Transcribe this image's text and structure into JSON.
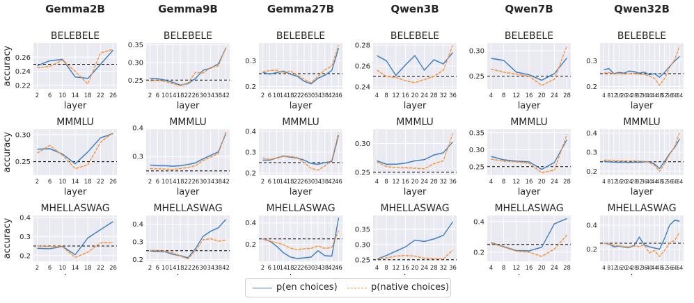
{
  "colors": {
    "en": "#3f7fbf",
    "native": "#f5943a",
    "panel_bg": "#eaeaf2",
    "grid": "#ffffff",
    "chance": "#000000"
  },
  "legend": {
    "en": "p(en choices)",
    "native": "p(native choices)"
  },
  "models": [
    "Gemma2B",
    "Gemma9B",
    "Gemma27B",
    "Qwen3B",
    "Qwen7B",
    "Qwen32B"
  ],
  "benchmarks": [
    "BELEBELE",
    "MMMLU",
    "MHELLASWAG"
  ],
  "xlabel": "layer",
  "ylabel": "accuracy",
  "chart_data": [
    {
      "type": "line",
      "model": "Gemma2B",
      "title": "BELEBELE",
      "chance": 0.25,
      "ylim": [
        0.215,
        0.28
      ],
      "yticks": [
        0.22,
        0.24,
        0.26
      ],
      "x": [
        2,
        6,
        10,
        14,
        18,
        22,
        26
      ],
      "xticks": [
        2,
        6,
        10,
        14,
        18,
        22,
        26
      ],
      "series": [
        {
          "name": "en",
          "values": [
            0.248,
            0.255,
            0.257,
            0.232,
            0.23,
            0.25,
            0.27
          ]
        },
        {
          "name": "native",
          "values": [
            0.245,
            0.247,
            0.256,
            0.24,
            0.222,
            0.266,
            0.271
          ]
        }
      ]
    },
    {
      "type": "line",
      "model": "Gemma9B",
      "title": "BELEBELE",
      "chance": 0.25,
      "ylim": [
        0.225,
        0.355
      ],
      "yticks": [
        0.25,
        0.3,
        0.35
      ],
      "x": [
        2,
        6,
        10,
        14,
        18,
        22,
        26,
        30,
        34,
        38,
        42
      ],
      "xticks": [
        2,
        6,
        10,
        14,
        18,
        22,
        26,
        30,
        34,
        38,
        42
      ],
      "series": [
        {
          "name": "en",
          "values": [
            0.255,
            0.254,
            0.25,
            0.244,
            0.236,
            0.24,
            0.255,
            0.278,
            0.284,
            0.296,
            0.34
          ]
        },
        {
          "name": "native",
          "values": [
            0.248,
            0.249,
            0.246,
            0.24,
            0.234,
            0.242,
            0.272,
            0.27,
            0.286,
            0.29,
            0.343
          ]
        }
      ]
    },
    {
      "type": "line",
      "model": "Gemma27B",
      "title": "BELEBELE",
      "chance": 0.25,
      "ylim": [
        0.19,
        0.37
      ],
      "yticks": [
        0.2,
        0.3
      ],
      "x": [
        2,
        6,
        10,
        14,
        18,
        22,
        26,
        30,
        34,
        38,
        42,
        46
      ],
      "xticks": [
        2,
        6,
        10,
        14,
        18,
        22,
        26,
        30,
        34,
        38,
        42,
        46
      ],
      "series": [
        {
          "name": "en",
          "values": [
            0.255,
            0.248,
            0.254,
            0.26,
            0.248,
            0.24,
            0.22,
            0.21,
            0.232,
            0.244,
            0.262,
            0.35
          ]
        },
        {
          "name": "native",
          "values": [
            0.257,
            0.262,
            0.264,
            0.252,
            0.26,
            0.244,
            0.228,
            0.214,
            0.24,
            0.265,
            0.28,
            0.362
          ]
        }
      ]
    },
    {
      "type": "line",
      "model": "Qwen3B",
      "title": "BELEBELE",
      "chance": 0.25,
      "ylim": [
        0.238,
        0.282
      ],
      "yticks": [
        0.24,
        0.26,
        0.28
      ],
      "x": [
        4,
        8,
        12,
        16,
        20,
        24,
        28,
        32,
        36
      ],
      "xticks": [
        4,
        8,
        12,
        16,
        20,
        24,
        28,
        32,
        36
      ],
      "series": [
        {
          "name": "en",
          "values": [
            0.27,
            0.265,
            0.251,
            0.261,
            0.27,
            0.256,
            0.266,
            0.262,
            0.273
          ]
        },
        {
          "name": "native",
          "values": [
            0.256,
            0.25,
            0.249,
            0.246,
            0.244,
            0.247,
            0.25,
            0.256,
            0.28
          ]
        }
      ]
    },
    {
      "type": "line",
      "model": "Qwen7B",
      "title": "BELEBELE",
      "chance": 0.25,
      "ylim": [
        0.225,
        0.315
      ],
      "yticks": [
        0.25,
        0.3
      ],
      "x": [
        4,
        8,
        12,
        16,
        20,
        24,
        28
      ],
      "xticks": [
        4,
        8,
        12,
        16,
        20,
        24,
        28
      ],
      "series": [
        {
          "name": "en",
          "values": [
            0.285,
            0.281,
            0.258,
            0.253,
            0.242,
            0.255,
            0.286
          ]
        },
        {
          "name": "native",
          "values": [
            0.264,
            0.258,
            0.254,
            0.25,
            0.232,
            0.244,
            0.31
          ]
        }
      ]
    },
    {
      "type": "line",
      "model": "Qwen32B",
      "title": "BELEBELE",
      "chance": 0.25,
      "ylim": [
        0.19,
        0.37
      ],
      "yticks": [
        0.2,
        0.3
      ],
      "x": [
        4,
        8,
        12,
        16,
        20,
        24,
        28,
        32,
        36,
        40,
        44,
        48,
        52,
        56,
        60,
        64
      ],
      "xticks": [
        4,
        8,
        12,
        16,
        20,
        24,
        28,
        32,
        36,
        40,
        44,
        48,
        52,
        56,
        60,
        64
      ],
      "series": [
        {
          "name": "en",
          "values": [
            0.265,
            0.27,
            0.25,
            0.255,
            0.252,
            0.26,
            0.258,
            0.252,
            0.256,
            0.246,
            0.25,
            0.236,
            0.255,
            0.278,
            0.3,
            0.318
          ]
        },
        {
          "name": "native",
          "values": [
            0.252,
            0.254,
            0.249,
            0.251,
            0.248,
            0.25,
            0.252,
            0.248,
            0.247,
            0.24,
            0.232,
            0.205,
            0.23,
            0.275,
            0.305,
            0.36
          ]
        }
      ]
    },
    {
      "type": "line",
      "model": "Gemma2B",
      "title": "MMMLU",
      "chance": 0.25,
      "ylim": [
        0.225,
        0.31
      ],
      "yticks": [
        0.25,
        0.3
      ],
      "x": [
        2,
        6,
        10,
        14,
        18,
        22,
        26
      ],
      "xticks": [
        2,
        6,
        10,
        14,
        18,
        22,
        26
      ],
      "series": [
        {
          "name": "en",
          "values": [
            0.273,
            0.274,
            0.264,
            0.246,
            0.268,
            0.294,
            0.302
          ]
        },
        {
          "name": "native",
          "values": [
            0.266,
            0.28,
            0.262,
            0.237,
            0.244,
            0.286,
            0.304
          ]
        }
      ]
    },
    {
      "type": "line",
      "model": "Gemma9B",
      "title": "MMMLU",
      "chance": 0.25,
      "ylim": [
        0.235,
        0.395
      ],
      "yticks": [
        0.3,
        0.4
      ],
      "x": [
        2,
        6,
        10,
        14,
        18,
        22,
        26,
        30,
        34,
        38,
        42
      ],
      "xticks": [
        2,
        6,
        10,
        14,
        18,
        22,
        26,
        30,
        34,
        38,
        42
      ],
      "series": [
        {
          "name": "en",
          "values": [
            0.27,
            0.268,
            0.268,
            0.266,
            0.268,
            0.272,
            0.278,
            0.292,
            0.304,
            0.316,
            0.38
          ]
        },
        {
          "name": "native",
          "values": [
            0.258,
            0.257,
            0.256,
            0.255,
            0.258,
            0.262,
            0.268,
            0.286,
            0.298,
            0.31,
            0.386
          ]
        }
      ]
    },
    {
      "type": "line",
      "model": "Gemma27B",
      "title": "MMMLU",
      "chance": 0.25,
      "ylim": [
        0.19,
        0.41
      ],
      "yticks": [
        0.2,
        0.3,
        0.4
      ],
      "x": [
        2,
        6,
        10,
        14,
        18,
        22,
        26,
        30,
        34,
        38,
        42,
        46
      ],
      "xticks": [
        2,
        6,
        10,
        14,
        18,
        22,
        26,
        30,
        34,
        38,
        42,
        46
      ],
      "series": [
        {
          "name": "en",
          "values": [
            0.262,
            0.262,
            0.272,
            0.282,
            0.276,
            0.272,
            0.262,
            0.246,
            0.242,
            0.25,
            0.255,
            0.382
          ]
        },
        {
          "name": "native",
          "values": [
            0.272,
            0.265,
            0.272,
            0.28,
            0.28,
            0.274,
            0.25,
            0.222,
            0.214,
            0.234,
            0.262,
            0.395
          ]
        }
      ]
    },
    {
      "type": "line",
      "model": "Qwen3B",
      "title": "MMMLU",
      "chance": 0.25,
      "ylim": [
        0.245,
        0.325
      ],
      "yticks": [
        0.25,
        0.3
      ],
      "x": [
        4,
        8,
        12,
        16,
        20,
        24,
        28,
        32,
        36
      ],
      "xticks": [
        4,
        8,
        12,
        16,
        20,
        24,
        28,
        32,
        36
      ],
      "series": [
        {
          "name": "en",
          "values": [
            0.27,
            0.264,
            0.264,
            0.266,
            0.27,
            0.272,
            0.28,
            0.284,
            0.303
          ]
        },
        {
          "name": "native",
          "values": [
            0.268,
            0.26,
            0.258,
            0.258,
            0.257,
            0.256,
            0.265,
            0.27,
            0.318
          ]
        }
      ]
    },
    {
      "type": "line",
      "model": "Qwen7B",
      "title": "MMMLU",
      "chance": 0.25,
      "ylim": [
        0.225,
        0.36
      ],
      "yticks": [
        0.25,
        0.3,
        0.35
      ],
      "x": [
        4,
        8,
        12,
        16,
        20,
        24,
        28
      ],
      "xticks": [
        4,
        8,
        12,
        16,
        20,
        24,
        28
      ],
      "series": [
        {
          "name": "en",
          "values": [
            0.28,
            0.27,
            0.266,
            0.264,
            0.242,
            0.262,
            0.33
          ]
        },
        {
          "name": "native",
          "values": [
            0.272,
            0.266,
            0.264,
            0.26,
            0.232,
            0.24,
            0.345
          ]
        }
      ]
    },
    {
      "type": "line",
      "model": "Qwen32B",
      "title": "MMMLU",
      "chance": 0.25,
      "ylim": [
        0.18,
        0.42
      ],
      "yticks": [
        0.2,
        0.3,
        0.4
      ],
      "x": [
        4,
        8,
        12,
        16,
        20,
        24,
        28,
        32,
        36,
        40,
        44,
        48,
        52,
        56,
        60,
        64
      ],
      "xticks": [
        4,
        8,
        12,
        16,
        20,
        24,
        28,
        32,
        36,
        40,
        44,
        48,
        52,
        56,
        60,
        64
      ],
      "series": [
        {
          "name": "en",
          "values": [
            0.252,
            0.25,
            0.248,
            0.247,
            0.248,
            0.246,
            0.248,
            0.247,
            0.249,
            0.25,
            0.238,
            0.215,
            0.252,
            0.292,
            0.325,
            0.37
          ]
        },
        {
          "name": "native",
          "values": [
            0.258,
            0.258,
            0.257,
            0.256,
            0.255,
            0.254,
            0.255,
            0.253,
            0.252,
            0.245,
            0.232,
            0.2,
            0.24,
            0.288,
            0.33,
            0.405
          ]
        }
      ]
    },
    {
      "type": "line",
      "model": "Gemma2B",
      "title": "MHELLASWAG",
      "chance": 0.25,
      "ylim": [
        0.17,
        0.41
      ],
      "yticks": [
        0.2,
        0.3,
        0.4
      ],
      "x": [
        2,
        6,
        10,
        14,
        18,
        22,
        26
      ],
      "xticks": [
        2,
        6,
        10,
        14,
        18,
        22,
        26
      ],
      "series": [
        {
          "name": "en",
          "values": [
            0.238,
            0.236,
            0.248,
            0.204,
            0.292,
            0.336,
            0.378
          ]
        },
        {
          "name": "native",
          "values": [
            0.25,
            0.248,
            0.246,
            0.19,
            0.218,
            0.266,
            0.268
          ]
        }
      ]
    },
    {
      "type": "line",
      "model": "Gemma9B",
      "title": "MHELLASWAG",
      "chance": 0.25,
      "ylim": [
        0.19,
        0.45
      ],
      "yticks": [
        0.2,
        0.3,
        0.4
      ],
      "x": [
        2,
        6,
        10,
        14,
        18,
        22,
        26,
        30,
        34,
        38,
        42
      ],
      "xticks": [
        2,
        6,
        10,
        14,
        18,
        22,
        26,
        30,
        34,
        38,
        42
      ],
      "series": [
        {
          "name": "en",
          "values": [
            0.248,
            0.246,
            0.244,
            0.23,
            0.222,
            0.21,
            0.262,
            0.332,
            0.36,
            0.38,
            0.428
          ]
        },
        {
          "name": "native",
          "values": [
            0.252,
            0.252,
            0.246,
            0.238,
            0.22,
            0.204,
            0.25,
            0.312,
            0.318,
            0.304,
            0.31
          ]
        }
      ]
    },
    {
      "type": "line",
      "model": "Gemma27B",
      "title": "MHELLASWAG",
      "chance": 0.25,
      "ylim": [
        0.04,
        0.47
      ],
      "yticks": [
        0.2,
        0.4
      ],
      "x": [
        2,
        6,
        10,
        14,
        18,
        22,
        26,
        30,
        34,
        38,
        42,
        46
      ],
      "xticks": [
        2,
        6,
        10,
        14,
        18,
        22,
        26,
        30,
        34,
        38,
        42,
        46
      ],
      "series": [
        {
          "name": "en",
          "values": [
            0.25,
            0.23,
            0.182,
            0.12,
            0.08,
            0.066,
            0.072,
            0.08,
            0.14,
            0.092,
            0.088,
            0.45
          ]
        },
        {
          "name": "native",
          "values": [
            0.25,
            0.228,
            0.214,
            0.196,
            0.164,
            0.148,
            0.158,
            0.162,
            0.184,
            0.162,
            0.17,
            0.33
          ]
        }
      ]
    },
    {
      "type": "line",
      "model": "Qwen3B",
      "title": "MHELLASWAG",
      "chance": 0.25,
      "ylim": [
        0.245,
        0.395
      ],
      "yticks": [
        0.25,
        0.3,
        0.35
      ],
      "x": [
        4,
        8,
        12,
        16,
        20,
        24,
        28,
        32,
        36
      ],
      "xticks": [
        4,
        8,
        12,
        16,
        20,
        24,
        28,
        32,
        36
      ],
      "series": [
        {
          "name": "en",
          "values": [
            0.252,
            0.264,
            0.278,
            0.292,
            0.314,
            0.31,
            0.318,
            0.33,
            0.374
          ]
        },
        {
          "name": "native",
          "values": [
            0.252,
            0.256,
            0.262,
            0.264,
            0.262,
            0.255,
            0.254,
            0.253,
            0.282
          ]
        }
      ]
    },
    {
      "type": "line",
      "model": "Qwen7B",
      "title": "MHELLASWAG",
      "chance": 0.25,
      "ylim": [
        0.14,
        0.44
      ],
      "yticks": [
        0.2,
        0.4
      ],
      "x": [
        4,
        8,
        12,
        16,
        20,
        24,
        28
      ],
      "xticks": [
        4,
        8,
        12,
        16,
        20,
        24,
        28
      ],
      "series": [
        {
          "name": "en",
          "values": [
            0.262,
            0.236,
            0.21,
            0.208,
            0.232,
            0.385,
            0.42
          ]
        },
        {
          "name": "native",
          "values": [
            0.258,
            0.234,
            0.206,
            0.2,
            0.172,
            0.22,
            0.312
          ]
        }
      ]
    },
    {
      "type": "line",
      "model": "Qwen32B",
      "title": "MHELLASWAG",
      "chance": 0.25,
      "ylim": [
        0.1,
        0.48
      ],
      "yticks": [
        0.2,
        0.4
      ],
      "x": [
        4,
        8,
        12,
        16,
        20,
        24,
        28,
        32,
        36,
        40,
        44,
        48,
        52,
        56,
        60,
        64
      ],
      "xticks": [
        4,
        8,
        12,
        16,
        20,
        24,
        28,
        32,
        36,
        40,
        44,
        48,
        52,
        56,
        60,
        64
      ],
      "series": [
        {
          "name": "en",
          "values": [
            0.25,
            0.244,
            0.22,
            0.226,
            0.218,
            0.214,
            0.232,
            0.3,
            0.236,
            0.22,
            0.21,
            0.2,
            0.29,
            0.4,
            0.44,
            0.432
          ]
        },
        {
          "name": "native",
          "values": [
            0.25,
            0.246,
            0.232,
            0.228,
            0.222,
            0.22,
            0.226,
            0.222,
            0.236,
            0.17,
            0.19,
            0.14,
            0.19,
            0.25,
            0.275,
            0.34
          ]
        }
      ]
    }
  ]
}
